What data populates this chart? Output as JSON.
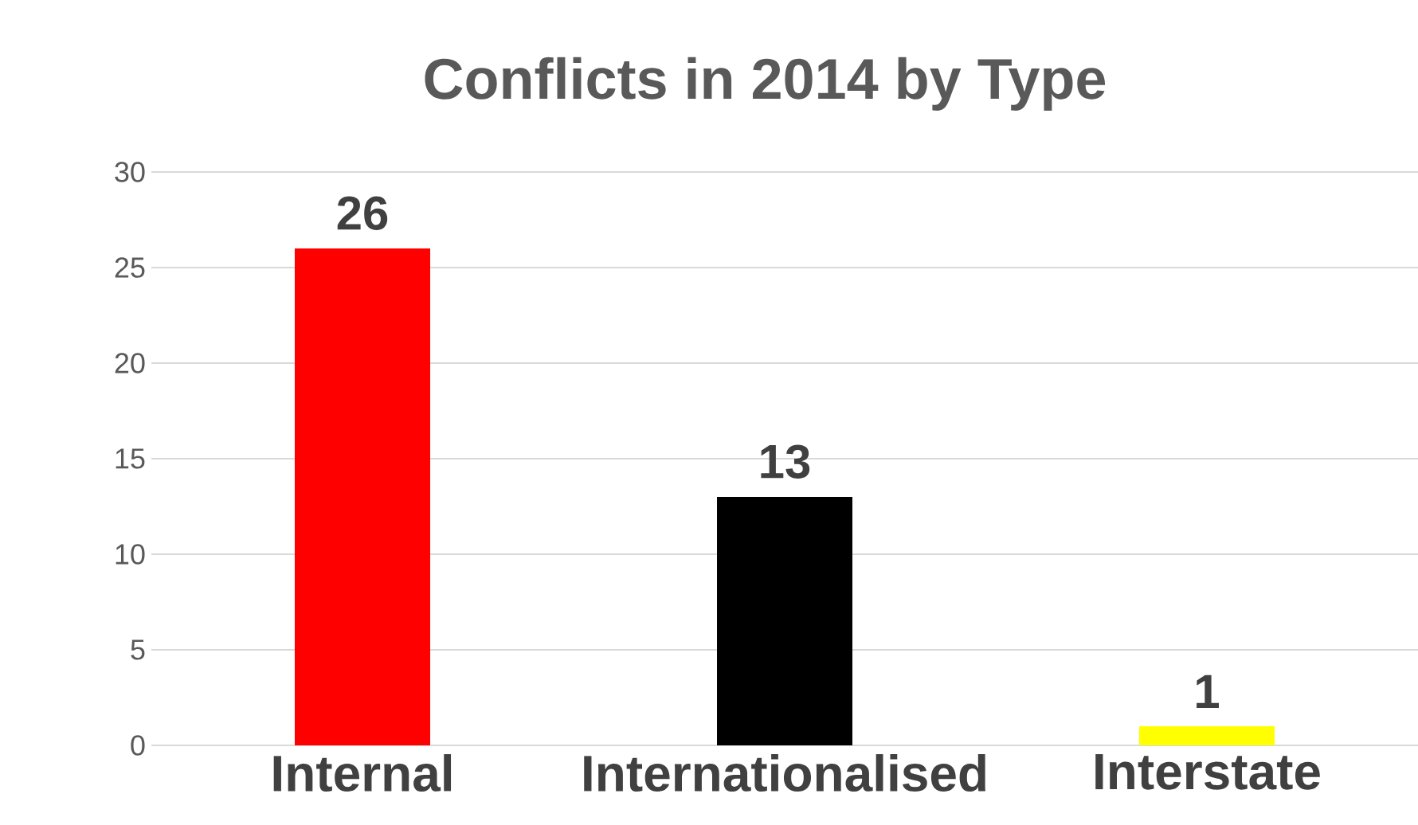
{
  "chart_data": {
    "type": "bar",
    "title": "Conflicts in 2014 by Type",
    "categories": [
      "Internal",
      "Internationalised",
      "Interstate"
    ],
    "values": [
      26,
      13,
      1
    ],
    "colors": [
      "#ff0000",
      "#000000",
      "#ffff00"
    ],
    "ylim": [
      0,
      30
    ],
    "yticks": [
      0,
      5,
      10,
      15,
      20,
      25,
      30
    ],
    "grid": "y",
    "data_labels": true
  }
}
